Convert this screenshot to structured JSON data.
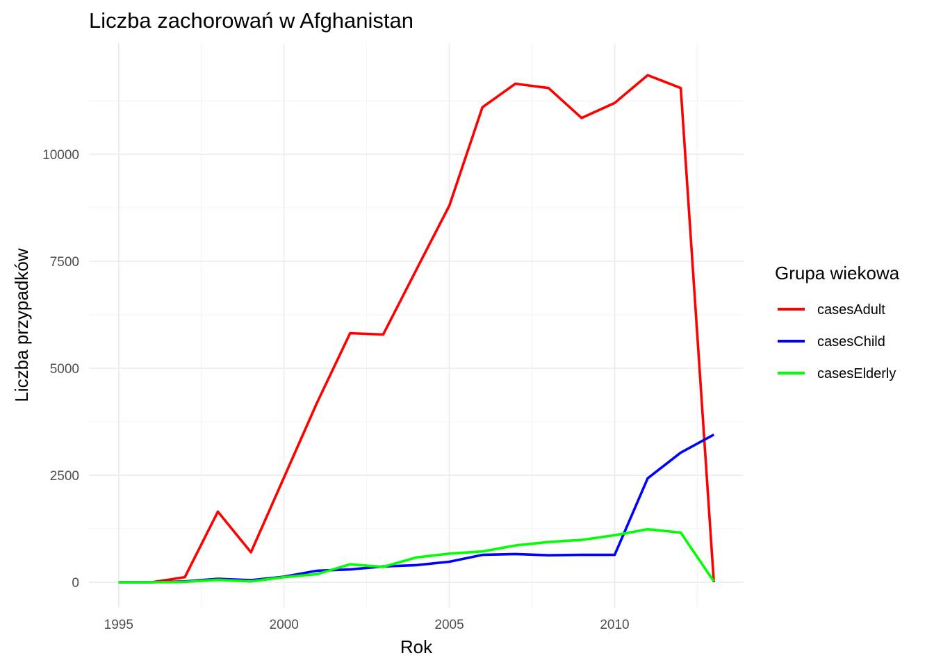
{
  "chart_data": {
    "type": "line",
    "title": "Liczba zachorowań w Afghanistan",
    "xlabel": "Rok",
    "ylabel": "Liczba przypadków",
    "x": [
      1995,
      1996,
      1997,
      1998,
      1999,
      2000,
      2001,
      2002,
      2003,
      2004,
      2005,
      2006,
      2007,
      2008,
      2009,
      2010,
      2011,
      2012,
      2013
    ],
    "x_ticks": [
      "1995",
      "2000",
      "2005",
      "2010"
    ],
    "y_ticks": [
      "0",
      "2500",
      "5000",
      "7500",
      "10000"
    ],
    "xlim": [
      1994.1,
      2013.9
    ],
    "ylim": [
      -600,
      12600
    ],
    "grid": true,
    "legend": {
      "title": "Grupa wiekowa",
      "position": "right"
    },
    "series": [
      {
        "name": "casesAdult",
        "color": "#ff0000",
        "values": [
          0,
          0,
          120,
          1650,
          700,
          2450,
          4200,
          5820,
          5790,
          7300,
          8800,
          11100,
          11650,
          11550,
          10850,
          11200,
          11850,
          11550,
          0
        ]
      },
      {
        "name": "casesChild",
        "color": "#0000ff",
        "values": [
          0,
          0,
          20,
          80,
          50,
          130,
          270,
          300,
          370,
          400,
          480,
          640,
          660,
          630,
          640,
          640,
          2430,
          3030,
          3450
        ]
      },
      {
        "name": "casesElderly",
        "color": "#00ff00",
        "values": [
          0,
          0,
          10,
          60,
          20,
          120,
          190,
          420,
          360,
          580,
          670,
          720,
          860,
          940,
          990,
          1100,
          1240,
          1160,
          20
        ]
      }
    ]
  }
}
